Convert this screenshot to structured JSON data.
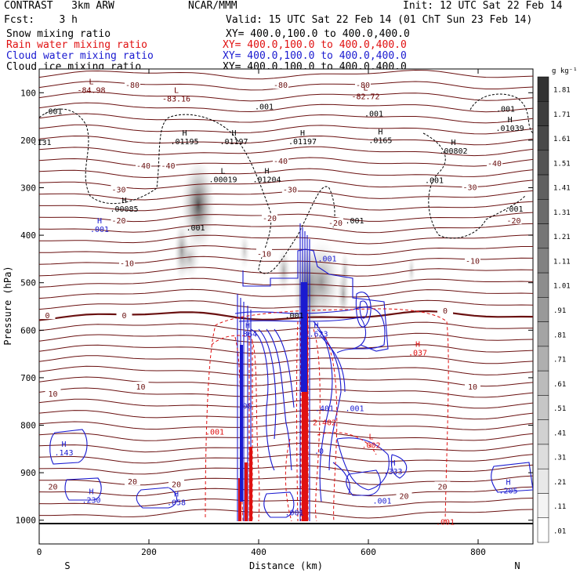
{
  "header": {
    "model": "CONTRAST   3km ARW",
    "org": "NCAR/MMM",
    "init": "Init: 12 UTC Sat 22 Feb 14",
    "fcst": "Fcst:    3 h",
    "valid": "Valid: 15 UTC Sat 22 Feb 14 (01 ChT Sun 23 Feb 14)",
    "fields": [
      {
        "name": "Snow mixing ratio",
        "xy": "",
        "color": "#000000"
      },
      {
        "name": "Rain water mixing ratio",
        "xy": "XY= 400.0,100.0 to 400.0,400.0",
        "color": "#e01010"
      },
      {
        "name": "Cloud water mixing ratio",
        "xy": "XY= 400.0,100.0 to 400.0,400.0",
        "color": "#1a1ad0"
      },
      {
        "name": "Cloud ice mixing ratio",
        "xy": "XY= 400.0,100.0 to 400.0,400.0",
        "color": "#000000"
      }
    ],
    "snow_xy": "XY= 400.0,100.0 to 400.0,400.0"
  },
  "chart_data": {
    "type": "contour",
    "xlabel": "Distance (km)",
    "ylabel": "Pressure (hPa)",
    "xlim": [
      0,
      900
    ],
    "ylim": [
      1050,
      50
    ],
    "x_ticks": [
      0,
      200,
      400,
      600,
      800
    ],
    "y_ticks": [
      100,
      200,
      300,
      400,
      500,
      600,
      700,
      800,
      900,
      1000
    ],
    "x_end_labels": {
      "left": "S",
      "right": "N"
    },
    "colorbar": {
      "unit": "g kg⁻¹",
      "ticks": [
        "1.81",
        "1.71",
        "1.61",
        "1.51",
        "1.41",
        "1.31",
        "1.21",
        "1.11",
        "1.01",
        ".91",
        ".81",
        ".71",
        ".61",
        ".51",
        ".41",
        ".31",
        ".21",
        ".11",
        ".01"
      ]
    },
    "temperature_labels": [
      {
        "text": "-80",
        "x": 170,
        "p": 85
      },
      {
        "text": "-80",
        "x": 440,
        "p": 85
      },
      {
        "text": "-80",
        "x": 590,
        "p": 85
      },
      {
        "text": "-40",
        "x": 190,
        "p": 255
      },
      {
        "text": "-40",
        "x": 235,
        "p": 255
      },
      {
        "text": "-40",
        "x": 440,
        "p": 245
      },
      {
        "text": "-40",
        "x": 830,
        "p": 250
      },
      {
        "text": "-30",
        "x": 145,
        "p": 305
      },
      {
        "text": "-30",
        "x": 457,
        "p": 305
      },
      {
        "text": "-30",
        "x": 785,
        "p": 300
      },
      {
        "text": "-20",
        "x": 145,
        "p": 370
      },
      {
        "text": "-20",
        "x": 420,
        "p": 365
      },
      {
        "text": "-20",
        "x": 865,
        "p": 370
      },
      {
        "text": "-20",
        "x": 540,
        "p": 375
      },
      {
        "text": "-10",
        "x": 160,
        "p": 460
      },
      {
        "text": "-10",
        "x": 410,
        "p": 440
      },
      {
        "text": "-10",
        "x": 790,
        "p": 455
      },
      {
        "text": "0",
        "x": 15,
        "p": 570
      },
      {
        "text": "0",
        "x": 155,
        "p": 570
      },
      {
        "text": "0",
        "x": 740,
        "p": 560
      },
      {
        "text": "10",
        "x": 25,
        "p": 735
      },
      {
        "text": "10",
        "x": 185,
        "p": 720
      },
      {
        "text": "10",
        "x": 790,
        "p": 720
      },
      {
        "text": "20",
        "x": 25,
        "p": 930
      },
      {
        "text": "20",
        "x": 170,
        "p": 920
      },
      {
        "text": "20",
        "x": 250,
        "p": 925
      },
      {
        "text": "20",
        "x": 735,
        "p": 930
      },
      {
        "text": "20",
        "x": 665,
        "p": 950
      }
    ],
    "extrema_labels": [
      {
        "mark": "L",
        "value": "-84.98",
        "x": 95,
        "p": 92,
        "color": "#6a0000"
      },
      {
        "mark": "L",
        "value": "-83.16",
        "x": 250,
        "p": 110,
        "color": "#6a0000"
      },
      {
        "mark": "L",
        "value": "-82.72",
        "x": 595,
        "p": 105,
        "color": "#6a0000"
      },
      {
        "mark": "H",
        "value": ".01195",
        "x": 265,
        "p": 200,
        "color": "#000000"
      },
      {
        "mark": "H",
        "value": ".01197",
        "x": 355,
        "p": 200,
        "color": "#000000"
      },
      {
        "mark": "H",
        "value": ".01197",
        "x": 480,
        "p": 200,
        "color": "#000000"
      },
      {
        "mark": "H",
        "value": ".0165",
        "x": 622,
        "p": 198,
        "color": "#000000"
      },
      {
        "mark": "H",
        "value": ".00802",
        "x": 755,
        "p": 220,
        "color": "#000000"
      },
      {
        "mark": "H",
        "value": ".01039",
        "x": 858,
        "p": 172,
        "color": "#000000"
      },
      {
        "mark": "L",
        "value": ".00019",
        "x": 335,
        "p": 280,
        "color": "#000000"
      },
      {
        "mark": "H",
        "value": ".01204",
        "x": 415,
        "p": 280,
        "color": "#000000"
      },
      {
        "mark": "H",
        "value": ".00085",
        "x": 155,
        "p": 342,
        "color": "#000000"
      },
      {
        "mark": "H",
        "value": ".001",
        "x": 110,
        "p": 385,
        "color": "#1a1ad0"
      },
      {
        "mark": "H",
        "value": ".864",
        "x": 380,
        "p": 605,
        "color": "#1a1ad0"
      },
      {
        "mark": "H",
        "value": "1.623",
        "x": 505,
        "p": 605,
        "color": "#1a1ad0"
      },
      {
        "mark": "H",
        "value": ".037",
        "x": 690,
        "p": 645,
        "color": "#e01010"
      },
      {
        "mark": "H",
        "value": ".143",
        "x": 45,
        "p": 855,
        "color": "#1a1ad0"
      },
      {
        "mark": "H",
        "value": ".230",
        "x": 95,
        "p": 955,
        "color": "#1a1ad0"
      },
      {
        "mark": "H",
        "value": ".058",
        "x": 250,
        "p": 960,
        "color": "#1a1ad0"
      },
      {
        "mark": "H",
        "value": ".333",
        "x": 645,
        "p": 895,
        "color": "#1a1ad0"
      },
      {
        "mark": "H",
        "value": ".205",
        "x": 855,
        "p": 935,
        "color": "#1a1ad0"
      },
      {
        "mark": "L",
        "value": ".002",
        "x": 605,
        "p": 840,
        "color": "#e01010"
      }
    ],
    "value_labels": [
      {
        "text": ".001",
        "x": 25,
        "p": 140,
        "color": "#000000"
      },
      {
        "text": ".001",
        "x": 410,
        "p": 130,
        "color": "#000000"
      },
      {
        "text": ".001",
        "x": 610,
        "p": 145,
        "color": "#000000"
      },
      {
        "text": ".001",
        "x": 850,
        "p": 135,
        "color": "#000000"
      },
      {
        "text": ".131",
        "x": 5,
        "p": 205,
        "color": "#000000"
      },
      {
        "text": ".001",
        "x": 720,
        "p": 285,
        "color": "#000000"
      },
      {
        "text": ".001",
        "x": 865,
        "p": 345,
        "color": "#000000"
      },
      {
        "text": ".001",
        "x": 285,
        "p": 385,
        "color": "#000000"
      },
      {
        "text": ".001",
        "x": 575,
        "p": 370,
        "color": "#000000"
      },
      {
        "text": ".001",
        "x": 525,
        "p": 450,
        "color": "#1a1ad0"
      },
      {
        "text": ".001",
        "x": 465,
        "p": 570,
        "color": "#000000"
      },
      {
        "text": ".00",
        "x": 375,
        "p": 760,
        "color": "#1a1ad0"
      },
      {
        "text": ".401",
        "x": 520,
        "p": 765,
        "color": "#1a1ad0"
      },
      {
        "text": ".001",
        "x": 575,
        "p": 765,
        "color": "#1a1ad0"
      },
      {
        "text": ".001",
        "x": 320,
        "p": 815,
        "color": "#e01010"
      },
      {
        "text": "2.402",
        "x": 520,
        "p": 795,
        "color": "#e01010"
      },
      {
        "text": ".0",
        "x": 510,
        "p": 855,
        "color": "#1a1ad0"
      },
      {
        "text": ".001",
        "x": 465,
        "p": 985,
        "color": "#1a1ad0"
      },
      {
        "text": ".001",
        "x": 625,
        "p": 960,
        "color": "#1a1ad0"
      },
      {
        "text": ".001",
        "x": 740,
        "p": 1005,
        "color": "#e01010"
      }
    ]
  }
}
